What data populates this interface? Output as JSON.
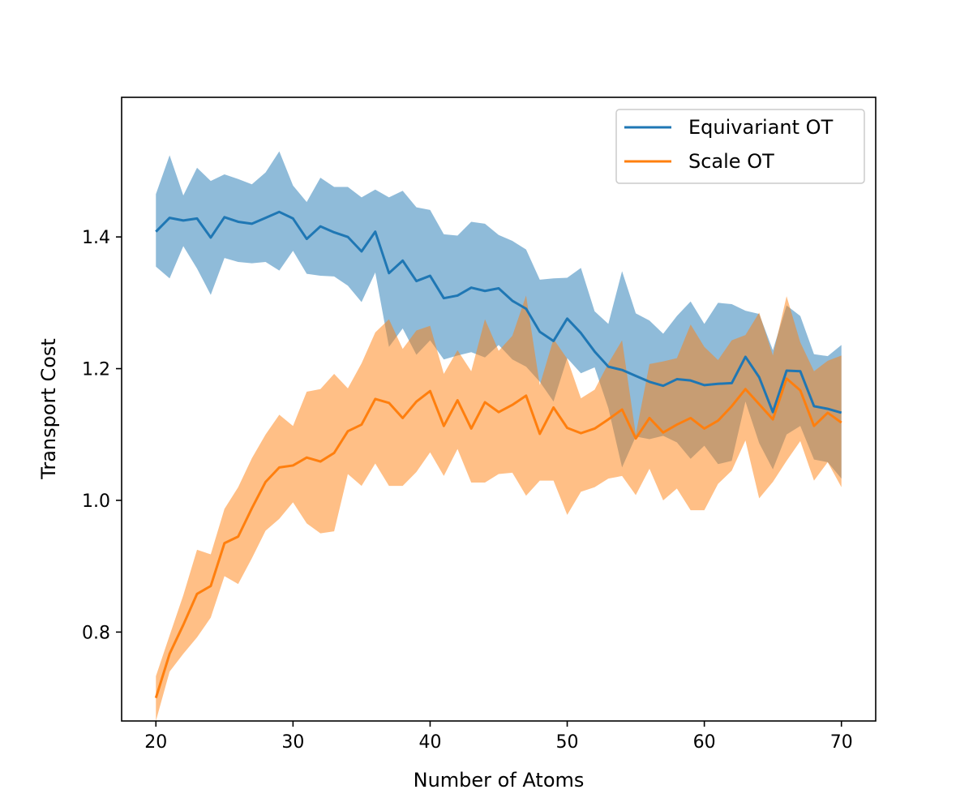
{
  "chart_data": {
    "type": "line",
    "title": "",
    "xlabel": "Number of Atoms",
    "ylabel": "Transport Cost",
    "xlim": [
      17.5,
      72.5
    ],
    "ylim": [
      0.665,
      1.612
    ],
    "xticks": [
      20,
      30,
      40,
      50,
      60,
      70
    ],
    "yticks": [
      0.8,
      1.0,
      1.2,
      1.4
    ],
    "xtick_labels": [
      "20",
      "30",
      "40",
      "50",
      "60",
      "70"
    ],
    "ytick_labels": [
      "0.8",
      "1.0",
      "1.2",
      "1.4"
    ],
    "legend_position": "top-right",
    "x": [
      20,
      21,
      22,
      23,
      24,
      25,
      26,
      27,
      28,
      29,
      30,
      31,
      32,
      33,
      34,
      35,
      36,
      37,
      38,
      39,
      40,
      41,
      42,
      43,
      44,
      45,
      46,
      47,
      48,
      49,
      50,
      51,
      52,
      53,
      54,
      55,
      56,
      57,
      58,
      59,
      60,
      61,
      62,
      63,
      64,
      65,
      66,
      67,
      68,
      69,
      70
    ],
    "series": [
      {
        "name": "Equivariant OT",
        "color": "#1f77b4",
        "band_color": "#1f77b4",
        "values": [
          1.408,
          1.429,
          1.425,
          1.428,
          1.399,
          1.43,
          1.423,
          1.42,
          1.429,
          1.438,
          1.428,
          1.397,
          1.416,
          1.407,
          1.4,
          1.378,
          1.408,
          1.345,
          1.364,
          1.333,
          1.341,
          1.307,
          1.311,
          1.323,
          1.318,
          1.322,
          1.303,
          1.291,
          1.256,
          1.242,
          1.276,
          1.254,
          1.226,
          1.203,
          1.198,
          1.189,
          1.18,
          1.174,
          1.184,
          1.182,
          1.175,
          1.177,
          1.178,
          1.218,
          1.187,
          1.134,
          1.197,
          1.196,
          1.143,
          1.139,
          1.133
        ],
        "upper": [
          1.465,
          1.524,
          1.463,
          1.505,
          1.485,
          1.495,
          1.488,
          1.48,
          1.498,
          1.53,
          1.478,
          1.453,
          1.49,
          1.476,
          1.476,
          1.46,
          1.472,
          1.46,
          1.47,
          1.445,
          1.441,
          1.404,
          1.402,
          1.423,
          1.42,
          1.403,
          1.394,
          1.381,
          1.335,
          1.337,
          1.338,
          1.353,
          1.287,
          1.268,
          1.348,
          1.284,
          1.273,
          1.253,
          1.28,
          1.302,
          1.268,
          1.3,
          1.298,
          1.288,
          1.283,
          1.228,
          1.296,
          1.28,
          1.222,
          1.219,
          1.236
        ],
        "lower": [
          1.355,
          1.337,
          1.386,
          1.352,
          1.312,
          1.368,
          1.362,
          1.36,
          1.362,
          1.349,
          1.379,
          1.344,
          1.341,
          1.34,
          1.326,
          1.301,
          1.346,
          1.233,
          1.261,
          1.221,
          1.243,
          1.214,
          1.22,
          1.225,
          1.217,
          1.236,
          1.214,
          1.203,
          1.18,
          1.15,
          1.216,
          1.193,
          1.202,
          1.14,
          1.05,
          1.097,
          1.093,
          1.098,
          1.088,
          1.063,
          1.083,
          1.055,
          1.06,
          1.15,
          1.087,
          1.047,
          1.1,
          1.113,
          1.062,
          1.058,
          1.033
        ]
      },
      {
        "name": "Scale OT",
        "color": "#ff7f0e",
        "band_color": "#ff7f0e",
        "values": [
          0.7,
          0.767,
          0.811,
          0.858,
          0.87,
          0.935,
          0.945,
          0.988,
          1.028,
          1.05,
          1.053,
          1.065,
          1.059,
          1.072,
          1.105,
          1.115,
          1.154,
          1.148,
          1.125,
          1.15,
          1.166,
          1.113,
          1.152,
          1.109,
          1.149,
          1.134,
          1.145,
          1.159,
          1.101,
          1.141,
          1.11,
          1.102,
          1.109,
          1.123,
          1.138,
          1.094,
          1.125,
          1.103,
          1.115,
          1.125,
          1.109,
          1.121,
          1.143,
          1.169,
          1.146,
          1.123,
          1.185,
          1.167,
          1.113,
          1.133,
          1.118
        ],
        "upper": [
          0.733,
          0.795,
          0.856,
          0.925,
          0.918,
          0.987,
          1.02,
          1.064,
          1.1,
          1.13,
          1.113,
          1.165,
          1.169,
          1.192,
          1.17,
          1.208,
          1.255,
          1.275,
          1.23,
          1.258,
          1.265,
          1.192,
          1.228,
          1.196,
          1.275,
          1.227,
          1.25,
          1.311,
          1.175,
          1.245,
          1.215,
          1.155,
          1.168,
          1.208,
          1.243,
          1.1,
          1.207,
          1.211,
          1.216,
          1.267,
          1.233,
          1.213,
          1.243,
          1.251,
          1.285,
          1.22,
          1.31,
          1.24,
          1.196,
          1.212,
          1.22
        ],
        "lower": [
          0.665,
          0.74,
          0.767,
          0.792,
          0.822,
          0.885,
          0.873,
          0.912,
          0.954,
          0.972,
          0.997,
          0.965,
          0.95,
          0.953,
          1.04,
          1.022,
          1.056,
          1.022,
          1.022,
          1.043,
          1.073,
          1.037,
          1.078,
          1.027,
          1.027,
          1.04,
          1.042,
          1.007,
          1.03,
          1.03,
          0.978,
          1.013,
          1.02,
          1.033,
          1.037,
          1.008,
          1.048,
          1.0,
          1.018,
          0.985,
          0.985,
          1.025,
          1.045,
          1.091,
          1.003,
          1.028,
          1.06,
          1.09,
          1.03,
          1.058,
          1.02
        ]
      }
    ]
  }
}
